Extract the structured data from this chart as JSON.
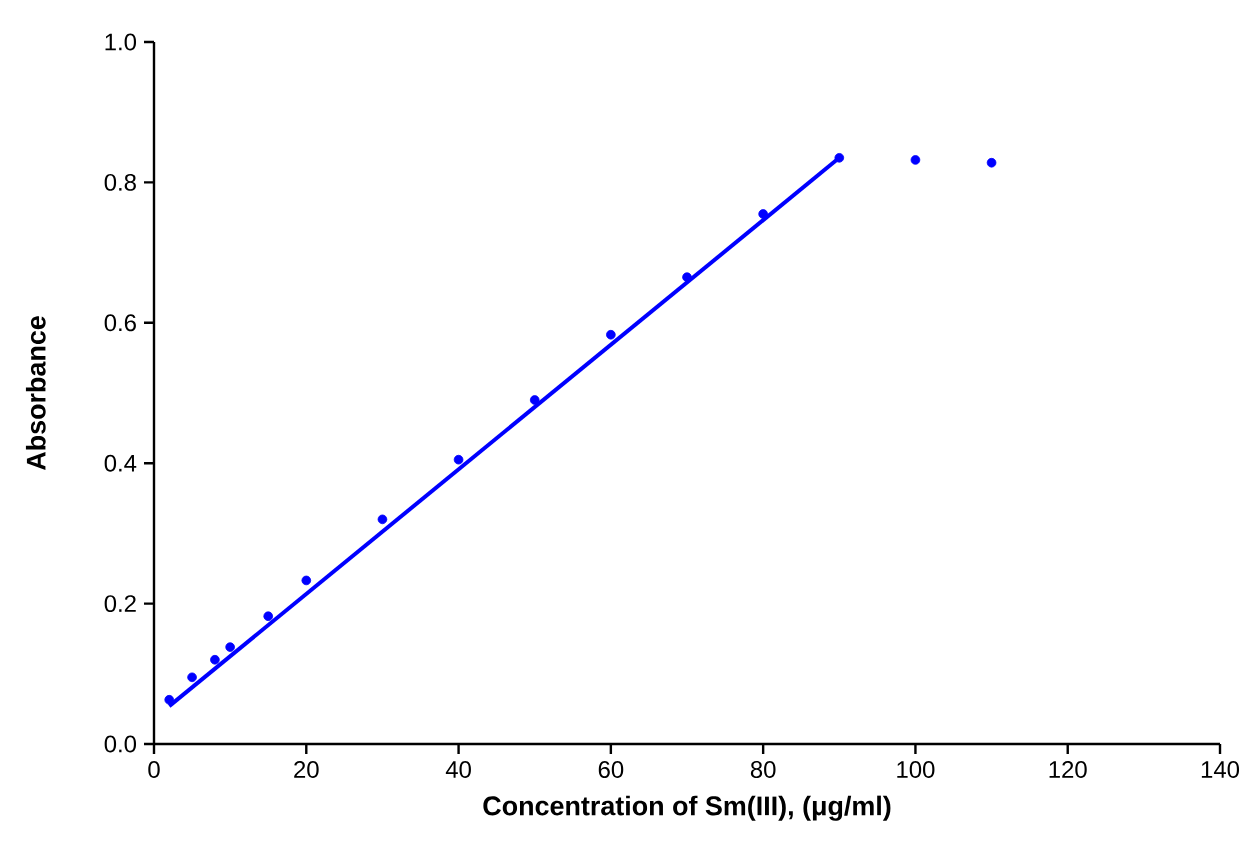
{
  "chart_data": {
    "type": "scatter",
    "xlabel": "Concentration of Sm(III), (μg/ml)",
    "ylabel": "Absorbance",
    "xlim": [
      0,
      140
    ],
    "ylim": [
      0.0,
      1.0
    ],
    "xticks": [
      0,
      20,
      40,
      60,
      80,
      100,
      120,
      140
    ],
    "yticks": [
      {
        "value": 0.0,
        "label": "0.0"
      },
      {
        "value": 0.2,
        "label": "0.2"
      },
      {
        "value": 0.4,
        "label": "0.4"
      },
      {
        "value": 0.6,
        "label": "0.6"
      },
      {
        "value": 0.8,
        "label": "0.8"
      },
      {
        "value": 1.0,
        "label": "1.0"
      }
    ],
    "grid": false,
    "series": [
      {
        "color": "#0000ff",
        "marker": "circle",
        "x": [
          2,
          5,
          8,
          10,
          15,
          20,
          30,
          40,
          50,
          60,
          70,
          80,
          90,
          100,
          110
        ],
        "values": [
          0.063,
          0.095,
          0.12,
          0.138,
          0.182,
          0.233,
          0.32,
          0.405,
          0.49,
          0.583,
          0.665,
          0.755,
          0.835,
          0.832,
          0.828
        ]
      },
      {
        "type": "line",
        "color": "#0000ff",
        "marker": "none",
        "line_style": "solid",
        "x": [
          2,
          90
        ],
        "values": [
          0.054,
          0.835
        ]
      }
    ]
  }
}
